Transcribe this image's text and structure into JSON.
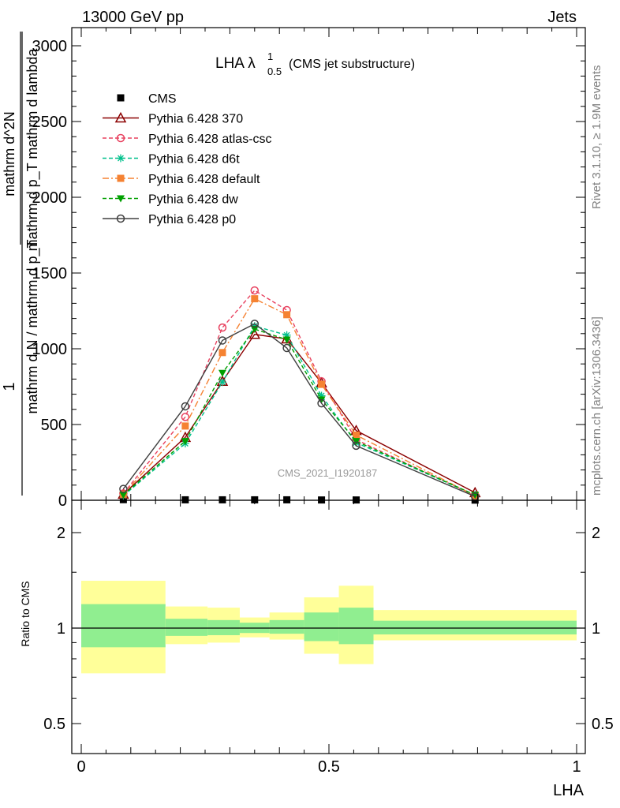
{
  "header": {
    "left": "13000 GeV pp",
    "right": "Jets"
  },
  "side_labels": {
    "rivet": "Rivet 3.1.10, ≥ 1.9M events",
    "mcplots": "mcplots.cern.ch [arXiv:1306.3436]"
  },
  "watermark": "CMS_2021_I1920187",
  "title": {
    "main": "LHA λ",
    "sup": "1",
    "sub": "0.5",
    "note": "(CMS jet substructure)"
  },
  "ylabel_main": {
    "numerator": "1",
    "denominator": "mathrm d N / mathrm d p_T",
    "frac_num": "mathrm d^2N",
    "frac_den": "mathrm d p_T mathrm d lambda"
  },
  "chart_data": [
    {
      "type": "line",
      "panel": "main",
      "xlabel": "",
      "ylabel": "1 / (mathrm d N / mathrm d p_T) · mathrm d^2N / (mathrm d p_T mathrm d lambda)",
      "xlim": [
        0,
        1
      ],
      "ylim": [
        0,
        3000
      ],
      "yticks": [
        0,
        500,
        1000,
        1500,
        2000,
        2500,
        3000
      ],
      "ytick_labels": [
        "0",
        "500",
        "1000",
        "1500",
        "2000",
        "2500",
        "3000"
      ],
      "legend_position": "top-left",
      "series": [
        {
          "name": "CMS",
          "color": "#000000",
          "style": "points",
          "marker": "square",
          "x": [
            0.085,
            0.21,
            0.285,
            0.35,
            0.415,
            0.485,
            0.555,
            0.795
          ],
          "y": [
            4,
            3,
            3,
            3,
            3,
            2,
            2,
            1
          ]
        },
        {
          "name": "Pythia 6.428 370",
          "color": "#8b0000",
          "style": "solid",
          "marker": "triangle-open",
          "x": [
            0.085,
            0.21,
            0.285,
            0.35,
            0.415,
            0.485,
            0.555,
            0.795
          ],
          "y": [
            40,
            415,
            785,
            1095,
            1065,
            775,
            460,
            50
          ]
        },
        {
          "name": "Pythia 6.428 atlas-csc",
          "color": "#e8415f",
          "style": "dashed",
          "marker": "circle-open",
          "x": [
            0.085,
            0.21,
            0.285,
            0.35,
            0.415,
            0.485,
            0.555,
            0.795
          ],
          "y": [
            45,
            550,
            1140,
            1385,
            1255,
            785,
            400,
            30
          ]
        },
        {
          "name": "Pythia 6.428 d6t",
          "color": "#00c08b",
          "style": "dashed",
          "marker": "asterisk",
          "x": [
            0.085,
            0.21,
            0.285,
            0.35,
            0.415,
            0.485,
            0.555,
            0.795
          ],
          "y": [
            30,
            375,
            780,
            1150,
            1090,
            690,
            380,
            35
          ]
        },
        {
          "name": "Pythia 6.428 default",
          "color": "#f58232",
          "style": "dashdot",
          "marker": "square",
          "x": [
            0.085,
            0.21,
            0.285,
            0.35,
            0.415,
            0.485,
            0.555,
            0.795
          ],
          "y": [
            40,
            490,
            975,
            1330,
            1225,
            765,
            430,
            30
          ]
        },
        {
          "name": "Pythia 6.428 dw",
          "color": "#00a000",
          "style": "dashed",
          "marker": "triangle-down",
          "x": [
            0.085,
            0.21,
            0.285,
            0.35,
            0.415,
            0.485,
            0.555,
            0.795
          ],
          "y": [
            35,
            390,
            840,
            1130,
            1060,
            665,
            390,
            35
          ]
        },
        {
          "name": "Pythia 6.428 p0",
          "color": "#404040",
          "style": "solid",
          "marker": "circle-open",
          "x": [
            0.085,
            0.21,
            0.285,
            0.35,
            0.415,
            0.485,
            0.555,
            0.795
          ],
          "y": [
            75,
            620,
            1055,
            1165,
            1005,
            640,
            360,
            25
          ]
        }
      ]
    },
    {
      "type": "area",
      "panel": "ratio",
      "xlabel": "LHA",
      "ylabel": "Ratio to CMS",
      "xlim": [
        0,
        1
      ],
      "ylim": [
        0.35,
        2.25
      ],
      "yticks": [
        0.5,
        1,
        2
      ],
      "ytick_labels": [
        "0.5",
        "1",
        "2"
      ],
      "xticks": [
        0,
        0.5,
        1
      ],
      "xtick_labels": [
        "0",
        "0.5",
        "1"
      ],
      "bands": {
        "bin_edges": [
          0,
          0.17,
          0.255,
          0.32,
          0.38,
          0.45,
          0.52,
          0.59,
          1.0
        ],
        "inner_color": "#90ee90",
        "outer_color": "#ffff99",
        "inner_lo": [
          0.87,
          0.945,
          0.95,
          0.965,
          0.96,
          0.91,
          0.89,
          0.955
        ],
        "inner_hi": [
          1.19,
          1.07,
          1.06,
          1.04,
          1.06,
          1.12,
          1.16,
          1.055
        ],
        "outer_lo": [
          0.72,
          0.89,
          0.9,
          0.935,
          0.92,
          0.83,
          0.77,
          0.915
        ],
        "outer_hi": [
          1.41,
          1.17,
          1.16,
          1.08,
          1.12,
          1.25,
          1.36,
          1.14
        ]
      },
      "reference_line": 1
    }
  ]
}
